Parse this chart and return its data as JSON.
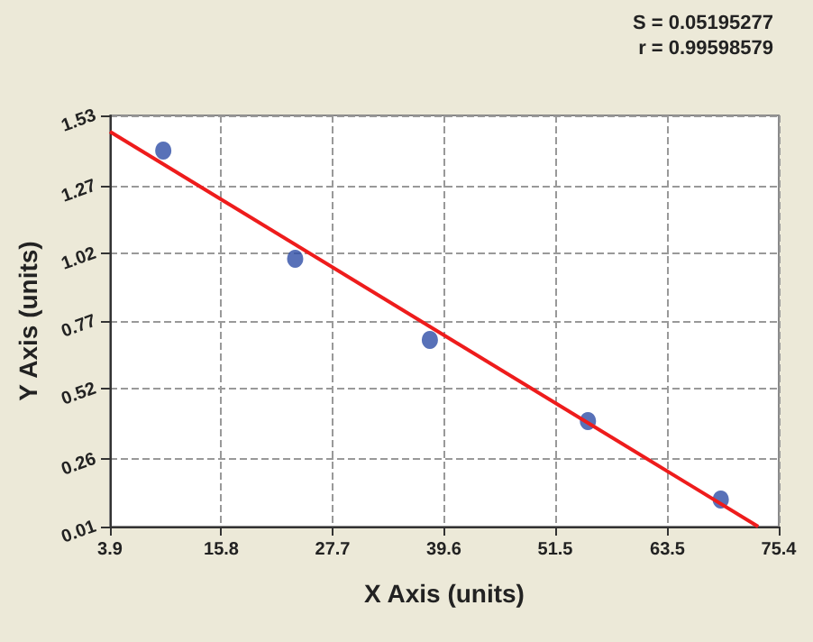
{
  "chart_data": {
    "type": "scatter",
    "xlabel": "X Axis (units)",
    "ylabel": "Y Axis (units)",
    "annotations": [
      "S = 0.05195277",
      "r = 0.99598579"
    ],
    "series": [
      {
        "color": "#2e4ea6",
        "x": [
          9.6,
          23.7,
          38.1,
          55.0,
          69.2
        ],
        "values": [
          1.4,
          1.0,
          0.7,
          0.4,
          0.11
        ],
        "marker": "circle"
      },
      {
        "type": "line",
        "color": "#ee1c1c",
        "x": [
          3.9,
          73.2
        ],
        "values": [
          1.47,
          0.01
        ],
        "marker": "none"
      }
    ],
    "xlim": [
      3.9,
      75.4
    ],
    "xticks": [
      3.9,
      15.8,
      27.7,
      39.6,
      51.5,
      63.5,
      75.4
    ],
    "ylim": [
      0.01,
      1.53
    ],
    "yticks": [
      0.01,
      0.26,
      0.52,
      0.77,
      1.02,
      1.27,
      1.53
    ],
    "grid": true
  }
}
